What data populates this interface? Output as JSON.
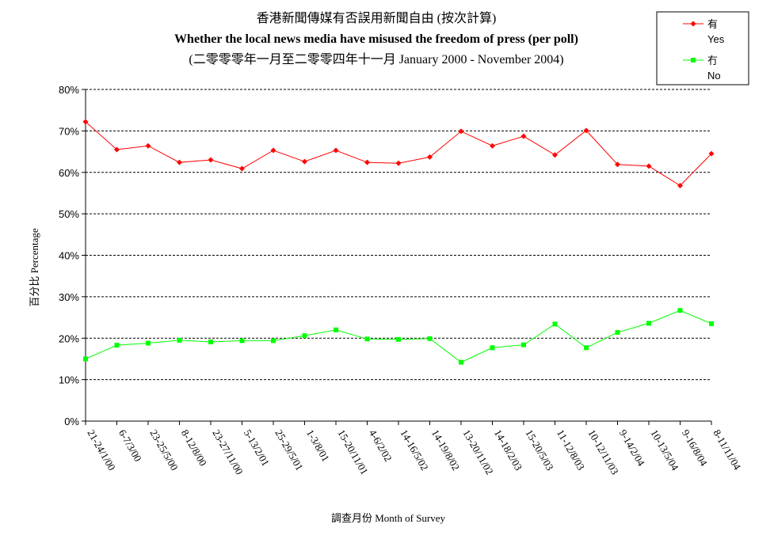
{
  "chart_data": {
    "type": "line",
    "title": [
      "香港新聞傳媒有否誤用新聞自由 (按次計算)",
      "Whether the local news media have misused the freedom of press (per poll)",
      "(二零零零年一月至二零零四年十一月 January 2000 - November 2004)"
    ],
    "xlabel": "調查月份 Month of Survey",
    "ylabel": "百分比 Percentage",
    "ylim": [
      0,
      80
    ],
    "y_ticks": [
      "0%",
      "10%",
      "20%",
      "30%",
      "40%",
      "50%",
      "60%",
      "70%",
      "80%"
    ],
    "grid": true,
    "legend_position": "top-right",
    "categories": [
      "21-24/1/00",
      "6-7/3/00",
      "23-25/5/00",
      "8-12/8/00",
      "23-27/11/00",
      "5-13/2/01",
      "25-29/5/01",
      "1-3/8/01",
      "15-20/11/01",
      "4-6/2/02",
      "14-16/5/02",
      "14-19/8/02",
      "13-20/11/02",
      "14-18/2/03",
      "15-20/5/03",
      "11-12/8/03",
      "10-12/11/03",
      "9-14/2/04",
      "10-13/5/04",
      "9-16/8/04",
      "8-11/11/04"
    ],
    "series": [
      {
        "name_cn": "有",
        "name_en": "Yes",
        "color": "#ff0000",
        "marker": "diamond",
        "values": [
          72.2,
          65.5,
          66.4,
          62.4,
          63.0,
          60.9,
          65.3,
          62.6,
          65.3,
          62.4,
          62.2,
          63.7,
          69.9,
          66.4,
          68.7,
          64.2,
          70.1,
          61.9,
          61.5,
          56.8,
          64.5
        ]
      },
      {
        "name_cn": "冇",
        "name_en": "No",
        "color": "#00ff00",
        "marker": "square",
        "values": [
          15.0,
          18.3,
          18.8,
          19.5,
          19.1,
          19.4,
          19.4,
          20.6,
          22.0,
          19.8,
          19.7,
          19.9,
          14.2,
          17.7,
          18.4,
          23.4,
          17.7,
          21.4,
          23.6,
          26.7,
          23.5
        ]
      }
    ]
  }
}
